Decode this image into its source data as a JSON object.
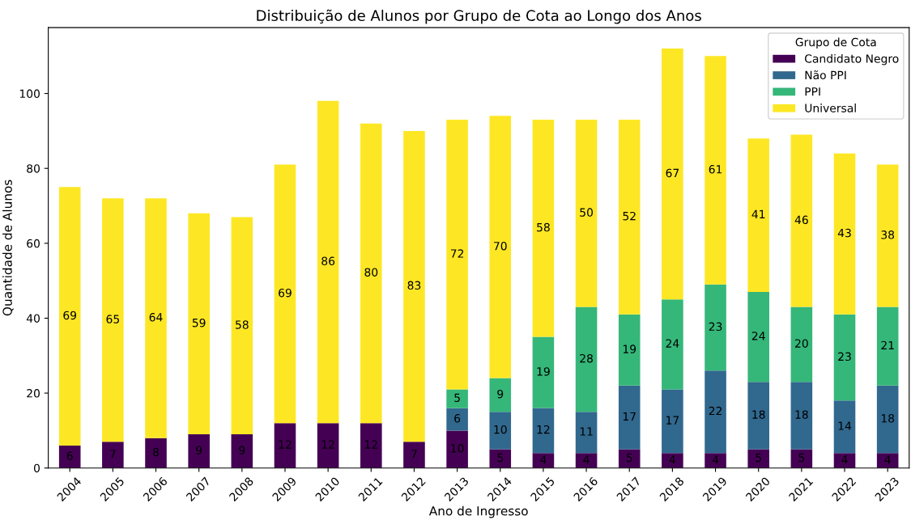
{
  "chart_data": {
    "type": "bar",
    "stacked": true,
    "title": "Distribuição de Alunos por Grupo de Cota ao Longo dos Anos",
    "xlabel": "Ano de Ingresso",
    "ylabel": "Quantidade de Alunos",
    "legend_title": "Grupo de Cota",
    "legend": "top right",
    "grid": false,
    "data_labels": true,
    "categories": [
      "2004",
      "2005",
      "2006",
      "2007",
      "2008",
      "2009",
      "2010",
      "2011",
      "2012",
      "2013",
      "2014",
      "2015",
      "2016",
      "2017",
      "2018",
      "2019",
      "2020",
      "2021",
      "2022",
      "2023"
    ],
    "ylim": [
      0,
      117.6
    ],
    "yticks": [
      0,
      20,
      40,
      60,
      80,
      100
    ],
    "series": [
      {
        "name": "Candidato Negro",
        "color": "#440154",
        "values": [
          6,
          7,
          8,
          9,
          9,
          12,
          12,
          12,
          7,
          10,
          5,
          4,
          4,
          5,
          4,
          4,
          5,
          5,
          4,
          4
        ]
      },
      {
        "name": "Não PPI",
        "color": "#31688e",
        "values": [
          null,
          null,
          null,
          null,
          null,
          null,
          null,
          null,
          null,
          6,
          10,
          12,
          11,
          17,
          17,
          22,
          18,
          18,
          14,
          18
        ]
      },
      {
        "name": "PPI",
        "color": "#35b779",
        "values": [
          null,
          null,
          null,
          null,
          null,
          null,
          null,
          null,
          null,
          5,
          9,
          19,
          28,
          19,
          24,
          23,
          24,
          20,
          23,
          21
        ]
      },
      {
        "name": "Universal",
        "color": "#fde725",
        "values": [
          69,
          65,
          64,
          59,
          58,
          69,
          86,
          80,
          83,
          72,
          70,
          58,
          50,
          52,
          67,
          61,
          41,
          46,
          43,
          38
        ]
      }
    ]
  }
}
